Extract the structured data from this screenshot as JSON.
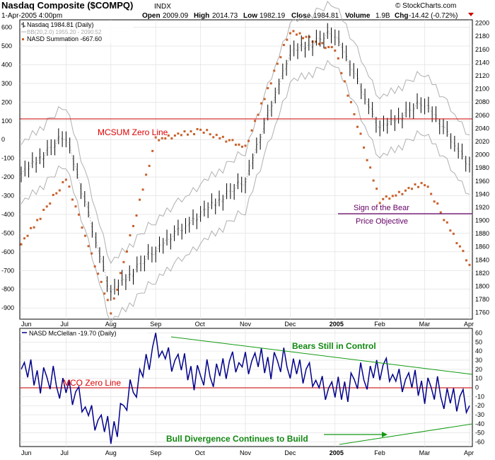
{
  "header": {
    "title": "Nasdaq Composite ($COMPQ)",
    "exchange": "INDX",
    "date": "1-Apr-2005 4:00pm",
    "open_label": "Open",
    "open": "2009.09",
    "high_label": "High",
    "high": "2014.73",
    "low_label": "Low",
    "low": "1982.19",
    "close_label": "Close",
    "close": "1984.81",
    "volume_label": "Volume",
    "volume": "1.9B",
    "chg_label": "Chg",
    "chg": "-14.42 (-0.72%)",
    "source": "© StockCharts.com"
  },
  "legend_top": {
    "price": "Nasdaq 1984.81 (Daily)",
    "bb": "BB(20,2.0) 1955.20 - 2090.52",
    "sum": "NASD Summation -667.60"
  },
  "legend_bottom": {
    "mco": "NASD McClellan -19.70 (Daily)"
  },
  "annotations": {
    "mcsum_zero": "MCSUM Zero Line",
    "bear": "Sign of the Bear",
    "objective": "Price Objective",
    "mco_zero": "MCO Zero Line",
    "bears": "Bears Still in Control",
    "bull": "Bull Divergence Continues to Build"
  },
  "colors": {
    "price": "#000000",
    "bands": "#b0b0b0",
    "summation": "#c8602a",
    "mco": "#00008b",
    "zero_line": "#cc0000",
    "trendline": "#119911",
    "annotation_red": "#dd0000",
    "annotation_purple": "#660066",
    "annotation_green": "#118811",
    "grid": "#dcdcdc"
  },
  "x_axis": {
    "labels": [
      "Jun",
      "Jul",
      "Aug",
      "Sep",
      "Oct",
      "Nov",
      "Dec",
      "2005",
      "Feb",
      "Mar",
      "Apr"
    ]
  },
  "chart_data": [
    {
      "type": "line",
      "title": "Nasdaq Composite ($COMPQ)",
      "series": [
        {
          "name": "Nasdaq",
          "x": [
            "Jun",
            "Jul",
            "Aug",
            "Sep",
            "Oct",
            "Nov",
            "Dec",
            "2005",
            "Feb",
            "Mar",
            "Apr"
          ],
          "values": [
            1970,
            2030,
            1790,
            1855,
            1910,
            1960,
            2155,
            2185,
            2040,
            2080,
            1985
          ]
        },
        {
          "name": "NASD Summation",
          "x": [
            "Jun",
            "Jul",
            "Aug",
            "Sep",
            "Oct",
            "Nov",
            "Dec",
            "2005",
            "Feb",
            "Mar",
            "Apr"
          ],
          "values": [
            -560,
            -210,
            -920,
            0,
            50,
            -40,
            580,
            480,
            -330,
            -230,
            -670
          ]
        }
      ],
      "y_left_ticks": [
        600,
        500,
        400,
        300,
        200,
        100,
        0,
        -100,
        -200,
        -300,
        -400,
        -500,
        -600,
        -700,
        -800,
        -900
      ],
      "y_right_ticks": [
        2200,
        2180,
        2160,
        2140,
        2120,
        2100,
        2080,
        2060,
        2040,
        2020,
        2000,
        1980,
        1960,
        1940,
        1920,
        1900,
        1880,
        1860,
        1840,
        1820,
        1800,
        1780,
        1760
      ],
      "ylim_left": [
        -960,
        640
      ],
      "ylim_right": [
        1750,
        2205
      ],
      "grid": true
    },
    {
      "type": "line",
      "series": [
        {
          "name": "NASD McClellan",
          "x": [
            "Jun",
            "Jul",
            "Aug",
            "Sep",
            "Oct",
            "Nov",
            "Dec",
            "2005",
            "Feb",
            "Mar",
            "Apr"
          ],
          "values": [
            20,
            0,
            -50,
            45,
            10,
            30,
            25,
            -5,
            20,
            0,
            -20
          ]
        }
      ],
      "y_ticks": [
        60,
        50,
        40,
        30,
        20,
        10,
        0,
        -10,
        -20,
        -30,
        -40,
        -50,
        -60
      ],
      "ylim": [
        -65,
        65
      ],
      "grid": true
    }
  ]
}
